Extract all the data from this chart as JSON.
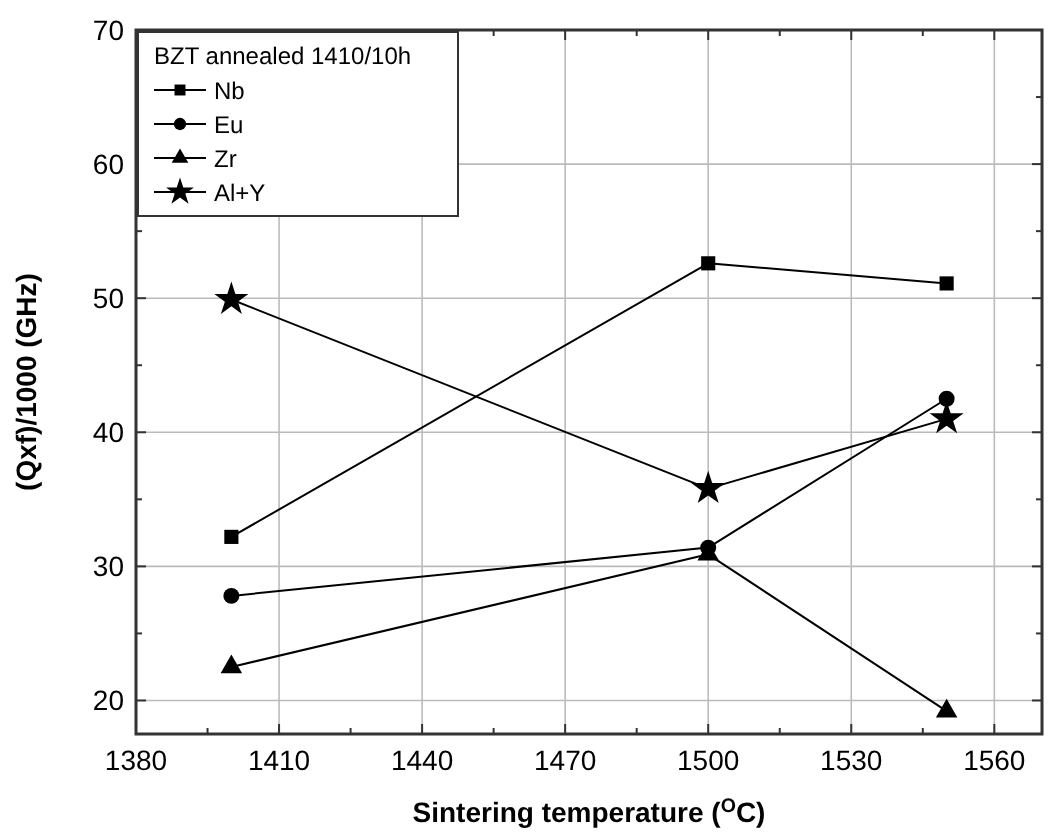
{
  "chart_data": {
    "type": "line",
    "xlabel": "Sintering temperature ($^{O}$C)",
    "ylabel": "(Qxf)/1000 (GHz)",
    "legend_title": "BZT annealed 1410/10h",
    "x": [
      1400,
      1500,
      1550
    ],
    "series": [
      {
        "name": "Nb",
        "color": "#000000",
        "marker": "square",
        "values": [
          32.2,
          52.6,
          51.1
        ]
      },
      {
        "name": "Eu",
        "color": "#000000",
        "marker": "circle",
        "values": [
          27.8,
          31.4,
          42.5
        ]
      },
      {
        "name": "Zr",
        "color": "#000000",
        "marker": "triangle",
        "values": [
          22.5,
          30.9,
          19.2
        ]
      },
      {
        "name": "Al+Y",
        "color": "#000000",
        "marker": "star",
        "values": [
          49.9,
          35.8,
          41.0
        ]
      }
    ],
    "xlim": [
      1380,
      1570
    ],
    "ylim": [
      17.5,
      70
    ],
    "xticks": [
      1380,
      {
        "value": 1395,
        "label": null
      },
      1410,
      {
        "value": 1425,
        "label": null
      },
      1440,
      {
        "value": 1455,
        "label": null
      },
      1470,
      {
        "value": 1485,
        "label": null
      },
      1500,
      {
        "value": 1515,
        "label": null
      },
      1530,
      {
        "value": 1545,
        "label": null
      },
      1560
    ],
    "yticks": [
      20,
      {
        "value": 25,
        "label": null
      },
      30,
      {
        "value": 35,
        "label": null
      },
      40,
      {
        "value": 45,
        "label": null
      },
      50,
      {
        "value": 55,
        "label": null
      },
      60,
      {
        "value": 65,
        "label": null
      },
      70
    ],
    "grid": true,
    "legend": "top left",
    "line_style": "solid"
  }
}
